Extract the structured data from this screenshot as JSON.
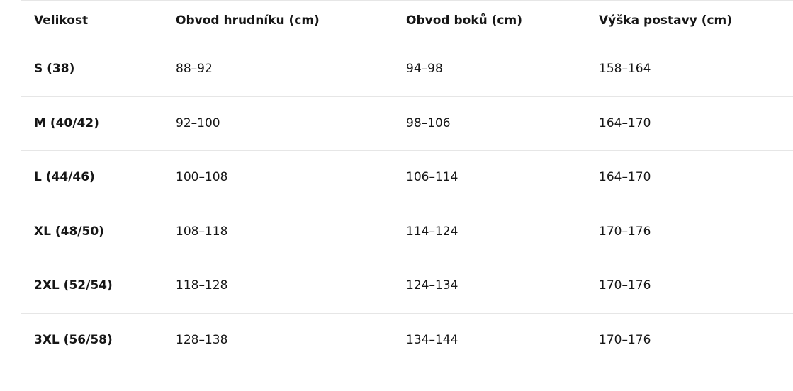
{
  "table": {
    "header": [
      "Velikost",
      "Obvod hrudníku (cm)",
      "Obvod boků (cm)",
      "Výška postavy (cm)"
    ],
    "rows": [
      [
        "S (38)",
        "88–92",
        "94–98",
        "158–164"
      ],
      [
        "M (40/42)",
        "92–100",
        "98–106",
        "164–170"
      ],
      [
        "L (44/46)",
        "100–108",
        "106–114",
        "164–170"
      ],
      [
        "XL (48/50)",
        "108–118",
        "114–124",
        "170–176"
      ],
      [
        "2XL (52/54)",
        "118–128",
        "124–134",
        "170–176"
      ],
      [
        "3XL (56/58)",
        "128–138",
        "134–144",
        "170–176"
      ]
    ]
  }
}
